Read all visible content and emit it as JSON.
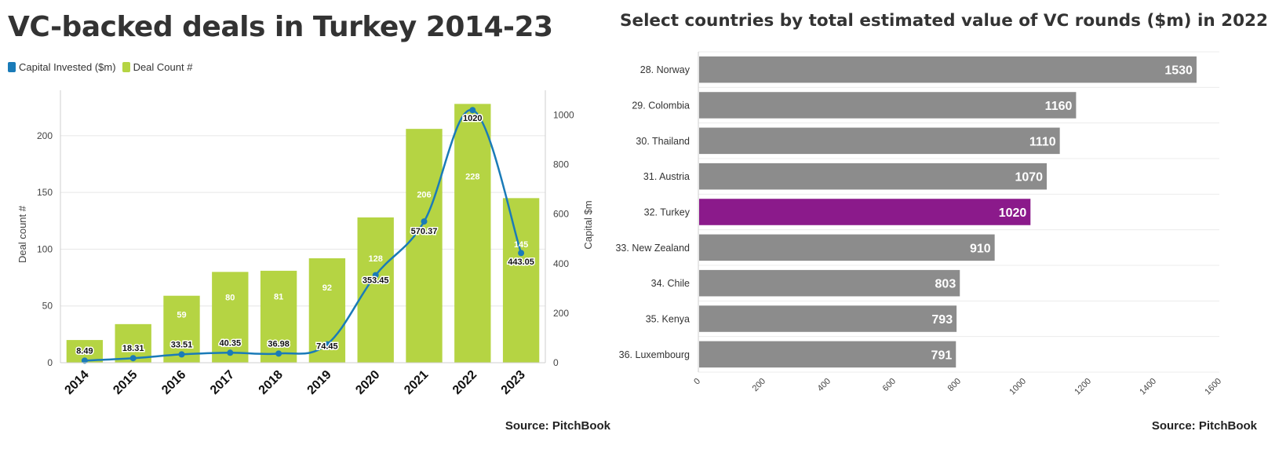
{
  "left": {
    "title": "VC-backed deals in Turkey 2014-23",
    "source": "Source: PitchBook",
    "legend": [
      {
        "label": "Capital Invested ($m)",
        "color": "#1a7bb8"
      },
      {
        "label": "Deal Count #",
        "color": "#b5d443"
      }
    ]
  },
  "right": {
    "title": "Select countries by total estimated value of VC rounds ($m) in 2022",
    "source": "Source: PitchBook"
  },
  "chart_data": [
    {
      "type": "bar",
      "title": "VC-backed deals in Turkey 2014-23",
      "categories": [
        "2014",
        "2015",
        "2016",
        "2017",
        "2018",
        "2019",
        "2020",
        "2021",
        "2022",
        "2023"
      ],
      "series": [
        {
          "name": "Deal Count #",
          "type": "bar",
          "axis": "left",
          "color": "#b5d443",
          "values": [
            20,
            34,
            59,
            80,
            81,
            92,
            128,
            206,
            228,
            145
          ],
          "labels": [
            "",
            "",
            "59",
            "80",
            "81",
            "92",
            "128",
            "206",
            "228",
            "145"
          ]
        },
        {
          "name": "Capital Invested ($m)",
          "type": "line",
          "axis": "right",
          "color": "#1a7bb8",
          "values": [
            8.49,
            18.31,
            33.51,
            40.35,
            36.98,
            74.45,
            353.45,
            570.37,
            1020,
            443.05
          ],
          "labels": [
            "8.49",
            "18.31",
            "33.51",
            "40.35",
            "36.98",
            "74.45",
            "353.45",
            "570.37",
            "1020",
            "443.05"
          ]
        }
      ],
      "ylabel": "Deal count #",
      "ylim": [
        0,
        240
      ],
      "yticks": [
        0,
        50,
        100,
        150,
        200
      ],
      "y2label": "Capital $m",
      "y2lim": [
        0,
        1100
      ],
      "y2ticks": [
        0,
        200,
        400,
        600,
        800,
        1000
      ],
      "grid": true,
      "legend": "top-left"
    },
    {
      "type": "bar",
      "orientation": "horizontal",
      "title": "Select countries by total estimated value of VC rounds ($m) in 2022",
      "categories": [
        "28. Norway",
        "29. Colombia",
        "30. Thailand",
        "31. Austria",
        "32. Turkey",
        "33. New Zealand",
        "34. Chile",
        "35. Kenya",
        "36. Luxembourg"
      ],
      "values": [
        1530,
        1160,
        1110,
        1070,
        1020,
        910,
        803,
        793,
        791
      ],
      "bar_colors": [
        "#8c8c8c",
        "#8c8c8c",
        "#8c8c8c",
        "#8c8c8c",
        "#8b1a8b",
        "#8c8c8c",
        "#8c8c8c",
        "#8c8c8c",
        "#8c8c8c"
      ],
      "xlim": [
        0,
        1600
      ],
      "xticks": [
        0,
        200,
        400,
        600,
        800,
        1000,
        1200,
        1400,
        1600
      ],
      "grid": true
    }
  ]
}
